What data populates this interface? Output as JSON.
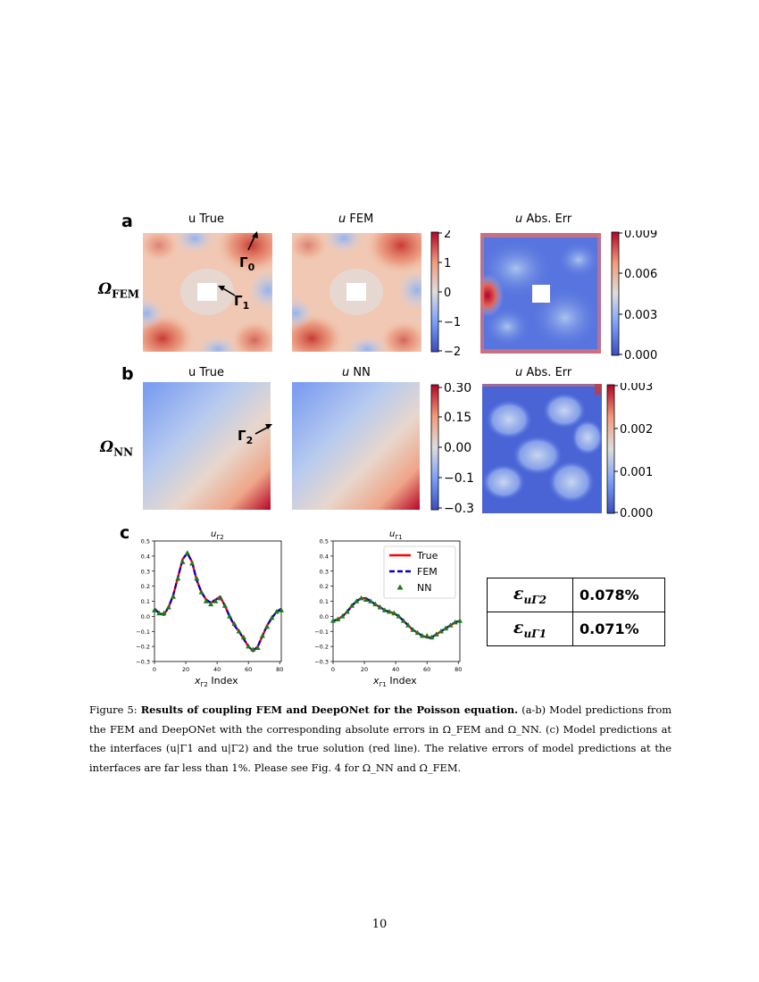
{
  "figure": {
    "panel_labels": {
      "a": "a",
      "b": "b",
      "c": "c"
    },
    "row_a": {
      "row_label": {
        "main": "Ω",
        "sub": "FEM"
      },
      "titles": {
        "true_prefix": "u",
        "true_rest": " True",
        "fem_prefix": "u",
        "fem_rest": " FEM",
        "err_prefix": "u",
        "err_rest": " Abs. Err"
      },
      "annotations": {
        "gamma0": "Γ",
        "gamma0_sub": "0",
        "gamma1": "Γ",
        "gamma1_sub": "1"
      },
      "colorbar_ticks": [
        "2",
        "1",
        "0",
        "−1",
        "−2"
      ],
      "err_colorbar_ticks": [
        "0.009",
        "0.006",
        "0.003",
        "0.000"
      ]
    },
    "row_b": {
      "row_label": {
        "main": "Ω",
        "sub": "NN"
      },
      "titles": {
        "true_prefix": "u",
        "true_rest": " True",
        "nn_prefix": "u",
        "nn_rest": " NN",
        "err_prefix": "u",
        "err_rest": " Abs. Err"
      },
      "annotations": {
        "gamma2": "Γ",
        "gamma2_sub": "2"
      },
      "colorbar_ticks": [
        "0.30",
        "0.15",
        "0.00",
        "−0.1",
        "−0.3"
      ],
      "err_colorbar_ticks": [
        "0.003",
        "0.002",
        "0.001",
        "0.000"
      ]
    },
    "colors": {
      "red": "#b40426",
      "blue": "#3b4cc0",
      "true_line": "#ff0000",
      "fem_line": "#0000cc",
      "nn_marker": "#1a7a1a"
    },
    "chart_data": [
      {
        "type": "line",
        "title": "u_Γ2",
        "title_main": "u",
        "title_sub": "Γ2",
        "xlabel_main": "x",
        "xlabel_sub": "Γ2",
        "xlabel_rest": " Index",
        "xlim": [
          0,
          81
        ],
        "ylim": [
          -0.3,
          0.5
        ],
        "x_ticks": [
          "0",
          "20",
          "40",
          "60",
          "80"
        ],
        "y_ticks": [
          "0.5",
          "0.4",
          "0.3",
          "0.2",
          "0.1",
          "0.0",
          "−0.1",
          "−0.2",
          "−0.3"
        ],
        "x": [
          0,
          3,
          6,
          9,
          12,
          15,
          18,
          21,
          24,
          27,
          30,
          33,
          36,
          39,
          42,
          45,
          48,
          51,
          54,
          57,
          60,
          63,
          66,
          69,
          72,
          75,
          78,
          81
        ],
        "series": [
          {
            "name": "True",
            "values": [
              0.05,
              0.02,
              0.01,
              0.06,
              0.14,
              0.26,
              0.38,
              0.42,
              0.36,
              0.24,
              0.16,
              0.11,
              0.09,
              0.11,
              0.13,
              0.07,
              0.0,
              -0.06,
              -0.1,
              -0.15,
              -0.2,
              -0.23,
              -0.2,
              -0.13,
              -0.06,
              -0.01,
              0.03,
              0.05
            ]
          },
          {
            "name": "FEM",
            "values": [
              0.05,
              0.02,
              0.01,
              0.06,
              0.14,
              0.26,
              0.38,
              0.42,
              0.36,
              0.24,
              0.16,
              0.11,
              0.09,
              0.11,
              0.13,
              0.07,
              0.0,
              -0.06,
              -0.1,
              -0.15,
              -0.2,
              -0.23,
              -0.2,
              -0.13,
              -0.06,
              -0.01,
              0.03,
              0.05
            ]
          },
          {
            "name": "NN",
            "values": [
              0.04,
              0.02,
              0.02,
              0.06,
              0.13,
              0.25,
              0.36,
              0.42,
              0.35,
              0.25,
              0.16,
              0.1,
              0.08,
              0.1,
              0.12,
              0.07,
              0.0,
              -0.05,
              -0.1,
              -0.14,
              -0.2,
              -0.22,
              -0.21,
              -0.13,
              -0.07,
              -0.01,
              0.03,
              0.04
            ]
          }
        ]
      },
      {
        "type": "line",
        "title": "u_Γ1",
        "title_main": "u",
        "title_sub": "Γ1",
        "xlabel_main": "x",
        "xlabel_sub": "Γ1",
        "xlabel_rest": " Index",
        "xlim": [
          0,
          81
        ],
        "ylim": [
          -0.3,
          0.5
        ],
        "x_ticks": [
          "0",
          "20",
          "40",
          "60",
          "80"
        ],
        "y_ticks": [
          "0.5",
          "0.4",
          "0.3",
          "0.2",
          "0.1",
          "0.0",
          "−0.1",
          "−0.2",
          "−0.3"
        ],
        "x": [
          0,
          3,
          6,
          9,
          12,
          15,
          18,
          21,
          24,
          27,
          30,
          33,
          36,
          39,
          42,
          45,
          48,
          51,
          54,
          57,
          60,
          63,
          66,
          69,
          72,
          75,
          78,
          81
        ],
        "legend": {
          "position": "upper-right",
          "entries": [
            "True",
            "FEM",
            "NN"
          ]
        },
        "series": [
          {
            "name": "True",
            "values": [
              -0.03,
              -0.02,
              0.0,
              0.03,
              0.07,
              0.1,
              0.12,
              0.12,
              0.1,
              0.08,
              0.06,
              0.04,
              0.03,
              0.02,
              0.0,
              -0.03,
              -0.06,
              -0.09,
              -0.11,
              -0.13,
              -0.14,
              -0.14,
              -0.12,
              -0.1,
              -0.08,
              -0.06,
              -0.04,
              -0.03
            ]
          },
          {
            "name": "FEM",
            "values": [
              -0.03,
              -0.02,
              0.0,
              0.03,
              0.07,
              0.1,
              0.12,
              0.12,
              0.1,
              0.08,
              0.06,
              0.04,
              0.03,
              0.02,
              0.0,
              -0.03,
              -0.06,
              -0.09,
              -0.11,
              -0.13,
              -0.14,
              -0.14,
              -0.12,
              -0.1,
              -0.08,
              -0.06,
              -0.04,
              -0.03
            ]
          },
          {
            "name": "NN",
            "values": [
              -0.03,
              -0.02,
              0.0,
              0.03,
              0.07,
              0.1,
              0.12,
              0.11,
              0.1,
              0.08,
              0.06,
              0.04,
              0.03,
              0.02,
              0.0,
              -0.03,
              -0.06,
              -0.09,
              -0.11,
              -0.13,
              -0.13,
              -0.14,
              -0.12,
              -0.1,
              -0.08,
              -0.06,
              -0.04,
              -0.03
            ]
          }
        ]
      }
    ],
    "error_table": [
      {
        "label_main": "ε",
        "label_sub": "uΓ2",
        "value": "0.078%"
      },
      {
        "label_main": "ε",
        "label_sub": "uΓ1",
        "value": "0.071%"
      }
    ]
  },
  "caption": {
    "label": "Figure 5: ",
    "bold": "Results of coupling FEM and DeepONet for the Poisson equation.",
    "text": " (a-b) Model predictions from the FEM and DeepONet with the corresponding absolute errors in Ω_FEM and Ω_NN. (c) Model predictions at the interfaces (u|Γ1 and u|Γ2) and the true solution (red line). The relative errors of model predictions at the interfaces are far less than 1%. Please see Fig. 4 for Ω_NN and Ω_FEM."
  },
  "page_number": "10"
}
